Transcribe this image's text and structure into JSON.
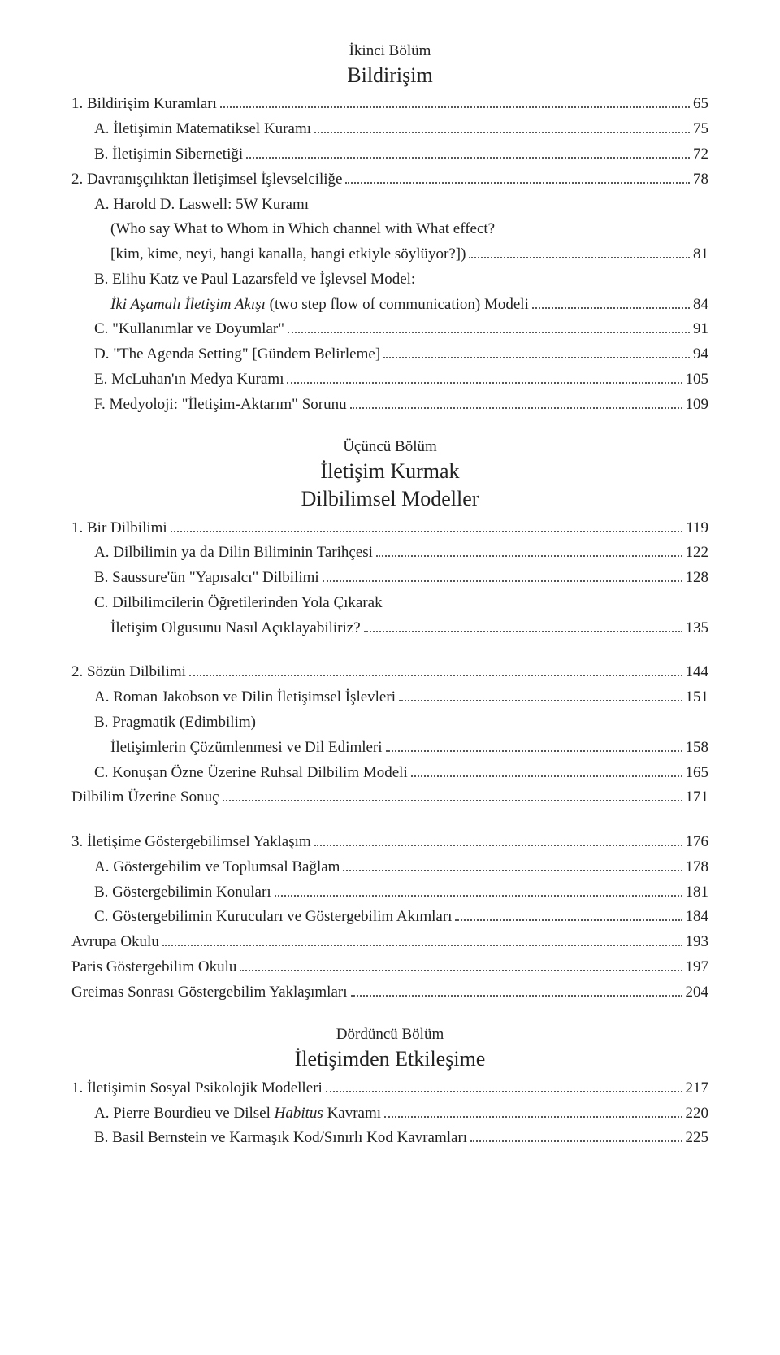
{
  "colors": {
    "text": "#222222",
    "background": "#ffffff",
    "leader": "#555555"
  },
  "typography": {
    "body_font": "Palatino / serif",
    "body_size_pt": 14,
    "heading_size_pt": 20
  },
  "s1": {
    "overline": "İkinci Bölüm",
    "title": "Bildirişim",
    "e1": {
      "label": "1. Bildirişim Kuramları",
      "page": "65"
    },
    "e2": {
      "label": "A. İletişimin Matematiksel Kuramı",
      "page": "75"
    },
    "e3": {
      "label": "B. İletişimin Sibernetiği",
      "page": "72"
    },
    "e4": {
      "label": "2. Davranışçılıktan İletişimsel İşlevselciliğe",
      "page": "78"
    },
    "e5": {
      "label": "A. Harold D. Laswell: 5W Kuramı"
    },
    "e5b": {
      "label": "(Who say What to Whom in Which channel with What effect?"
    },
    "e5c": {
      "label": "[kim, kime, neyi, hangi kanalla, hangi etkiyle söylüyor?])",
      "page": "81"
    },
    "e6": {
      "label": "B. Elihu Katz ve Paul Lazarsfeld ve İşlevsel Model:"
    },
    "e6b_pre": "İki Aşamalı İletişim Akışı",
    "e6b_post": " (two step flow of communication) Modeli",
    "e6b_page": "84",
    "e7": {
      "label": "C. \"Kullanımlar ve Doyumlar\"",
      "page": "91"
    },
    "e8": {
      "label": "D. \"The Agenda Setting\" [Gündem Belirleme]",
      "page": "94"
    },
    "e9": {
      "label": "E. McLuhan'ın Medya Kuramı",
      "page": "105"
    },
    "e10": {
      "label": "F. Medyoloji: \"İletişim-Aktarım\" Sorunu",
      "page": "109"
    }
  },
  "s2": {
    "overline": "Üçüncü Bölüm",
    "title": "İletişim Kurmak",
    "title2": "Dilbilimsel Modeller",
    "e1": {
      "label": "1. Bir Dilbilimi",
      "page": "119"
    },
    "e2": {
      "label": "A. Dilbilimin ya da Dilin Biliminin Tarihçesi",
      "page": "122"
    },
    "e3": {
      "label": "B. Saussure'ün \"Yapısalcı\" Dilbilimi",
      "page": "128"
    },
    "e4": {
      "label": "C. Dilbilimcilerin Öğretilerinden Yola Çıkarak"
    },
    "e4b": {
      "label": "İletişim Olgusunu Nasıl Açıklayabiliriz?",
      "page": "135"
    },
    "e5": {
      "label": "2. Sözün Dilbilimi",
      "page": "144"
    },
    "e6": {
      "label": "A. Roman Jakobson ve Dilin İletişimsel İşlevleri",
      "page": "151"
    },
    "e7": {
      "label": "B. Pragmatik (Edimbilim)"
    },
    "e7b": {
      "label": "İletişimlerin Çözümlenmesi ve Dil Edimleri",
      "page": "158"
    },
    "e8": {
      "label": "C. Konuşan Özne Üzerine Ruhsal Dilbilim Modeli",
      "page": "165"
    },
    "e9": {
      "label": "Dilbilim Üzerine Sonuç",
      "page": "171"
    },
    "e10": {
      "label": "3. İletişime Göstergebilimsel Yaklaşım",
      "page": "176"
    },
    "e11": {
      "label": "A. Göstergebilim ve Toplumsal Bağlam",
      "page": "178"
    },
    "e12": {
      "label": "B. Göstergebilimin Konuları",
      "page": "181"
    },
    "e13": {
      "label": "C. Göstergebilimin Kurucuları ve Göstergebilim Akımları",
      "page": "184"
    },
    "e14": {
      "label": "Avrupa Okulu",
      "page": "193"
    },
    "e15": {
      "label": "Paris Göstergebilim Okulu",
      "page": "197"
    },
    "e16": {
      "label": "Greimas Sonrası Göstergebilim Yaklaşımları",
      "page": "204"
    }
  },
  "s3": {
    "overline": "Dördüncü Bölüm",
    "title": "İletişimden Etkileşime",
    "e1": {
      "label": "1. İletişimin Sosyal Psikolojik Modelleri",
      "page": "217"
    },
    "e2_pre": "A. Pierre Bourdieu ve Dilsel ",
    "e2_it": "Habitus",
    "e2_post": " Kavramı",
    "e2_page": "220",
    "e3": {
      "label": "B. Basil Bernstein ve Karmaşık Kod/Sınırlı Kod Kavramları",
      "page": "225"
    }
  }
}
